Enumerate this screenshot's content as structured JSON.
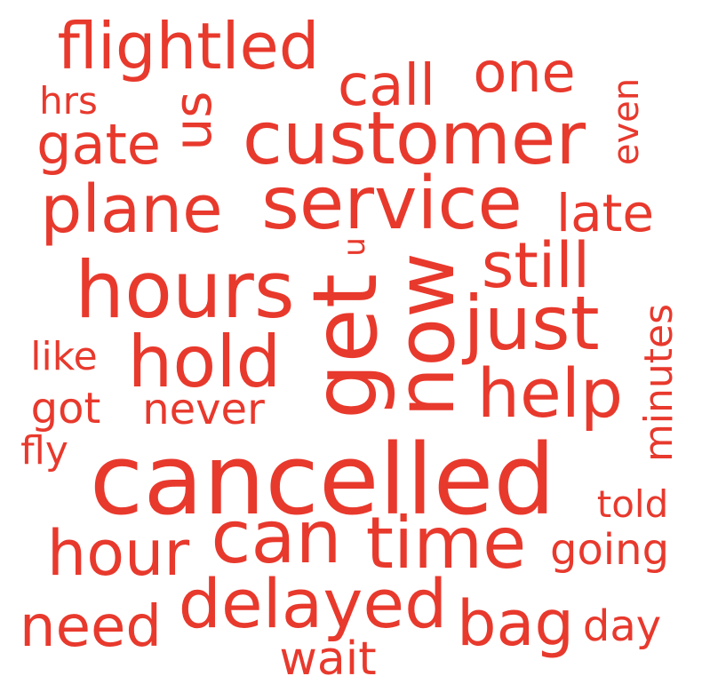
{
  "color": "#e8392d",
  "words": [
    {
      "text": "flightled",
      "rotated": false
    },
    {
      "text": "call",
      "rotated": false
    },
    {
      "text": "one",
      "rotated": false
    },
    {
      "text": "hrs",
      "rotated": false
    },
    {
      "text": "us",
      "rotated": true
    },
    {
      "text": "gate",
      "rotated": false
    },
    {
      "text": "customer",
      "rotated": false
    },
    {
      "text": "even",
      "rotated": true
    },
    {
      "text": "plane",
      "rotated": false
    },
    {
      "text": "service",
      "rotated": false
    },
    {
      "text": "late",
      "rotated": false
    },
    {
      "text": "u",
      "rotated": true
    },
    {
      "text": "still",
      "rotated": false
    },
    {
      "text": "hours",
      "rotated": false
    },
    {
      "text": "get",
      "rotated": true
    },
    {
      "text": "now",
      "rotated": true
    },
    {
      "text": "just",
      "rotated": false
    },
    {
      "text": "minutes",
      "rotated": true
    },
    {
      "text": "hold",
      "rotated": false
    },
    {
      "text": "like",
      "rotated": false
    },
    {
      "text": "help",
      "rotated": false
    },
    {
      "text": "got",
      "rotated": false
    },
    {
      "text": "never",
      "rotated": false
    },
    {
      "text": "fly",
      "rotated": false
    },
    {
      "text": "cancelled",
      "rotated": false
    },
    {
      "text": "told",
      "rotated": false
    },
    {
      "text": "hour",
      "rotated": false
    },
    {
      "text": "can",
      "rotated": false
    },
    {
      "text": "time",
      "rotated": false
    },
    {
      "text": "going",
      "rotated": false
    },
    {
      "text": "delayed",
      "rotated": false
    },
    {
      "text": "need",
      "rotated": false
    },
    {
      "text": "bag",
      "rotated": false
    },
    {
      "text": "day",
      "rotated": false
    },
    {
      "text": "wait",
      "rotated": false
    }
  ]
}
